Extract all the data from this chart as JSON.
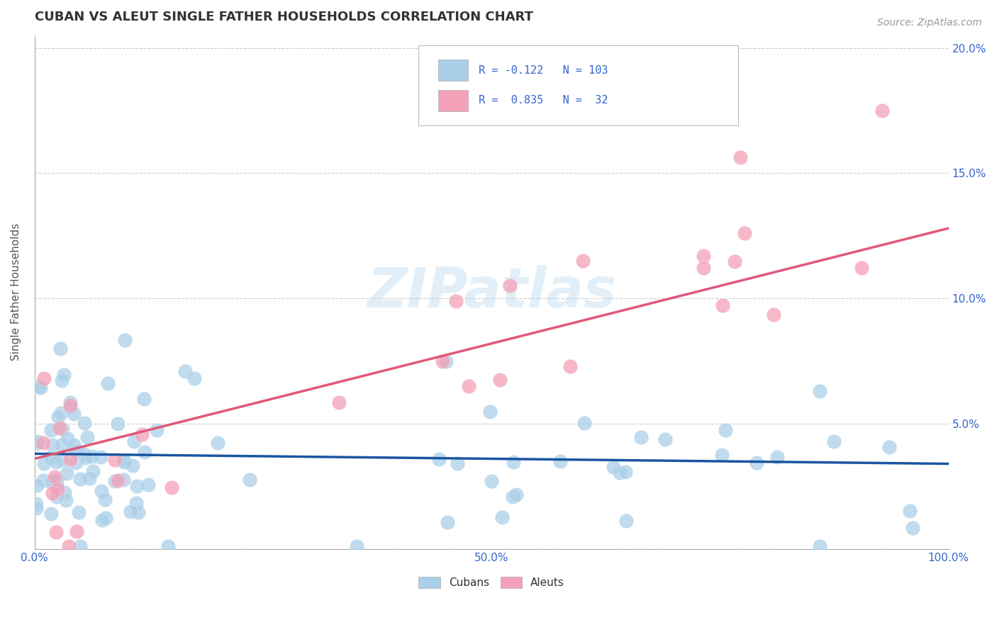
{
  "title": "CUBAN VS ALEUT SINGLE FATHER HOUSEHOLDS CORRELATION CHART",
  "source": "Source: ZipAtlas.com",
  "ylabel": "Single Father Households",
  "xlim": [
    0,
    1.0
  ],
  "ylim": [
    0,
    0.205
  ],
  "cuban_R": -0.122,
  "cuban_N": 103,
  "aleut_R": 0.835,
  "aleut_N": 32,
  "cuban_color": "#aacfe8",
  "aleut_color": "#f4a0b8",
  "cuban_line_color": "#1a56a0",
  "aleut_line_color": "#e05878",
  "legend_text_color": "#3366cc",
  "watermark": "ZIPatlas",
  "background_color": "#ffffff",
  "title_color": "#333333",
  "cuban_line_start_y": 0.038,
  "cuban_line_end_y": 0.034,
  "aleut_line_start_y": 0.036,
  "aleut_line_end_y": 0.128
}
